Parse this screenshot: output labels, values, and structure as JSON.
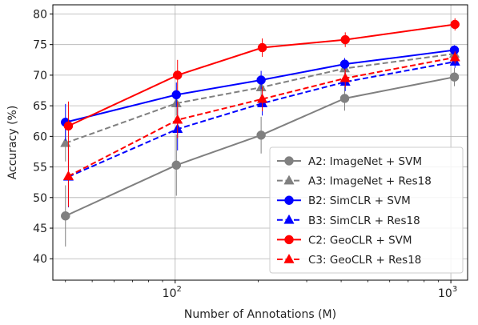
{
  "chart_data": {
    "type": "line",
    "title": "",
    "xlabel": "Number of Annotations (M)",
    "ylabel": "Accuracy (%)",
    "x_scale": "log",
    "xlim": [
      36,
      1150
    ],
    "ylim": [
      36.5,
      81.5
    ],
    "x_ticks": [
      {
        "value": 100,
        "base": "10",
        "exp": "2"
      },
      {
        "value": 1000,
        "base": "10",
        "exp": "3"
      }
    ],
    "y_ticks": [
      40,
      45,
      50,
      55,
      60,
      65,
      70,
      75,
      80
    ],
    "grid": true,
    "legend_position": "lower-right",
    "series": [
      {
        "name": "A2: ImageNet + SVM",
        "color": "#808080",
        "line_style": "solid",
        "marker": "circle",
        "x": [
          40,
          101,
          205,
          412,
          1030
        ],
        "y": [
          47.0,
          55.3,
          60.2,
          66.2,
          69.7
        ],
        "err": [
          5.0,
          5.0,
          3.0,
          2.0,
          1.5
        ]
      },
      {
        "name": "A3: ImageNet + Res18",
        "color": "#808080",
        "line_style": "dashed",
        "marker": "triangle",
        "x": [
          40,
          101,
          205,
          412,
          1030
        ],
        "y": [
          58.9,
          65.4,
          68.0,
          71.1,
          73.5
        ],
        "err": [
          3.0,
          2.0,
          1.5,
          1.0,
          0.8
        ]
      },
      {
        "name": "B2: SimCLR + SVM",
        "color": "#0000ff",
        "line_style": "solid",
        "marker": "circle",
        "x": [
          40,
          101,
          205,
          412,
          1030
        ],
        "y": [
          62.3,
          66.8,
          69.2,
          71.8,
          74.1
        ],
        "err": [
          3.0,
          2.0,
          1.5,
          1.0,
          0.8
        ]
      },
      {
        "name": "B3: SimCLR + Res18",
        "color": "#0000ff",
        "line_style": "dashed",
        "marker": "triangle",
        "x": [
          41,
          102,
          207,
          414,
          1035
        ],
        "y": [
          53.4,
          61.2,
          65.4,
          68.9,
          72.2
        ],
        "err": [
          5.0,
          3.5,
          2.0,
          1.5,
          1.0
        ]
      },
      {
        "name": "C2: GeoCLR + SVM",
        "color": "#ff0000",
        "line_style": "solid",
        "marker": "circle",
        "x": [
          41,
          102,
          207,
          414,
          1035
        ],
        "y": [
          61.7,
          70.0,
          74.5,
          75.8,
          78.3
        ],
        "err": [
          4.0,
          2.5,
          1.5,
          1.2,
          1.0
        ]
      },
      {
        "name": "C3: GeoCLR + Res18",
        "color": "#ff0000",
        "line_style": "dashed",
        "marker": "triangle",
        "x": [
          41,
          102,
          207,
          414,
          1035
        ],
        "y": [
          53.5,
          62.7,
          66.1,
          69.5,
          72.9
        ],
        "err": [
          5.0,
          3.0,
          2.0,
          1.5,
          1.0
        ]
      }
    ]
  }
}
